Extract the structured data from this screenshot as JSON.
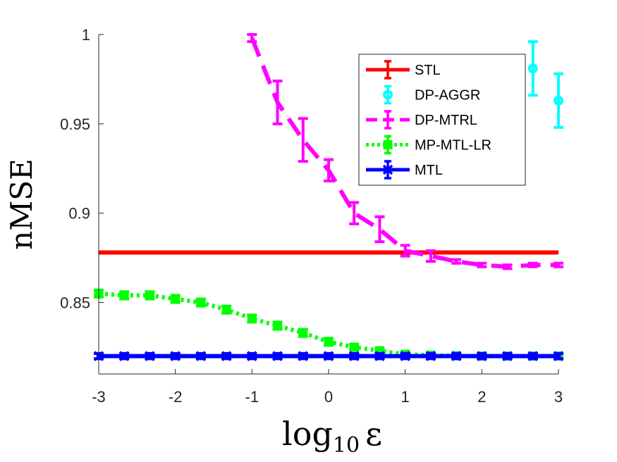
{
  "chart_data": {
    "type": "line",
    "title": "",
    "xlabel": {
      "base": "log",
      "sub": "10",
      "sym": "ε"
    },
    "ylabel": "nMSE",
    "xlim": [
      -3,
      3
    ],
    "ylim": [
      0.81,
      1.0
    ],
    "x_ticks": [
      "-3",
      "-2",
      "-1",
      "0",
      "1",
      "2",
      "3"
    ],
    "y_ticks": [
      "0.85",
      "0.9",
      "0.95",
      "1"
    ],
    "y_tick_values": [
      0.85,
      0.9,
      0.95,
      1.0
    ],
    "x_tick_values": [
      -3,
      -2,
      -1,
      0,
      1,
      2,
      3
    ],
    "grid": false,
    "legend_position": "top-right",
    "series": [
      {
        "name": "STL",
        "color": "#ff0000",
        "style": "solid",
        "marker": "none",
        "x": [
          -3,
          -2.6667,
          -2.3333,
          -2,
          -1.6667,
          -1.3333,
          -1,
          -0.6667,
          -0.3333,
          0,
          0.3333,
          0.6667,
          1,
          1.3333,
          1.6667,
          2,
          2.3333,
          2.6667,
          3
        ],
        "y": [
          0.878,
          0.878,
          0.878,
          0.878,
          0.878,
          0.878,
          0.878,
          0.878,
          0.878,
          0.878,
          0.878,
          0.878,
          0.878,
          0.878,
          0.878,
          0.878,
          0.878,
          0.878,
          0.878
        ],
        "err": [
          0,
          0,
          0,
          0,
          0,
          0,
          0,
          0,
          0,
          0,
          0,
          0,
          0,
          0,
          0,
          0,
          0,
          0,
          0
        ]
      },
      {
        "name": "DP-AGGR",
        "color": "#00ffff",
        "style": "none",
        "marker": "circle",
        "x": [
          2.6667,
          3
        ],
        "y": [
          0.981,
          0.963
        ],
        "err": [
          0.015,
          0.015
        ]
      },
      {
        "name": "DP-MTRL",
        "color": "#ff00ff",
        "style": "dashed",
        "marker": "none",
        "x": [
          -1,
          -0.6667,
          -0.3333,
          0,
          0.3333,
          0.6667,
          1,
          1.3333,
          1.6667,
          2,
          2.3333,
          2.6667,
          3
        ],
        "y": [
          0.998,
          0.962,
          0.941,
          0.924,
          0.9,
          0.891,
          0.879,
          0.876,
          0.873,
          0.871,
          0.87,
          0.871,
          0.871
        ],
        "err": [
          0.002,
          0.012,
          0.012,
          0.006,
          0.006,
          0.007,
          0.003,
          0.003,
          0.001,
          0.001,
          0.001,
          0.001,
          0.001
        ]
      },
      {
        "name": "MP-MTL-LR",
        "color": "#00ff00",
        "style": "dotted",
        "marker": "square",
        "x": [
          -3,
          -2.6667,
          -2.3333,
          -2,
          -1.6667,
          -1.3333,
          -1,
          -0.6667,
          -0.3333,
          0,
          0.3333,
          0.6667,
          1,
          1.3333,
          1.6667,
          2,
          2.3333,
          2.6667,
          3
        ],
        "y": [
          0.855,
          0.854,
          0.854,
          0.852,
          0.85,
          0.846,
          0.841,
          0.837,
          0.833,
          0.828,
          0.825,
          0.823,
          0.821,
          0.8205,
          0.8202,
          0.82,
          0.82,
          0.82,
          0.82
        ],
        "err": [
          0.002,
          0.002,
          0.002,
          0.002,
          0.002,
          0.002,
          0.002,
          0.002,
          0.002,
          0.002,
          0.0015,
          0.001,
          0.001,
          0.0005,
          0.0005,
          0.0005,
          0.0005,
          0.0005,
          0.0005
        ]
      },
      {
        "name": "MTL",
        "color": "#0000ff",
        "style": "solid",
        "marker": "x",
        "x": [
          -3,
          -2.6667,
          -2.3333,
          -2,
          -1.6667,
          -1.3333,
          -1,
          -0.6667,
          -0.3333,
          0,
          0.3333,
          0.6667,
          1,
          1.3333,
          1.6667,
          2,
          2.3333,
          2.6667,
          3
        ],
        "y": [
          0.82,
          0.82,
          0.82,
          0.82,
          0.82,
          0.82,
          0.82,
          0.82,
          0.82,
          0.82,
          0.82,
          0.82,
          0.82,
          0.82,
          0.82,
          0.82,
          0.82,
          0.82,
          0.82
        ],
        "err": [
          0.0015,
          0.0015,
          0.0015,
          0.0015,
          0.0015,
          0.0015,
          0.0015,
          0.0015,
          0.0015,
          0.0015,
          0.0015,
          0.0015,
          0.0015,
          0.0015,
          0.0015,
          0.0015,
          0.0015,
          0.0015,
          0.0015
        ]
      }
    ]
  }
}
